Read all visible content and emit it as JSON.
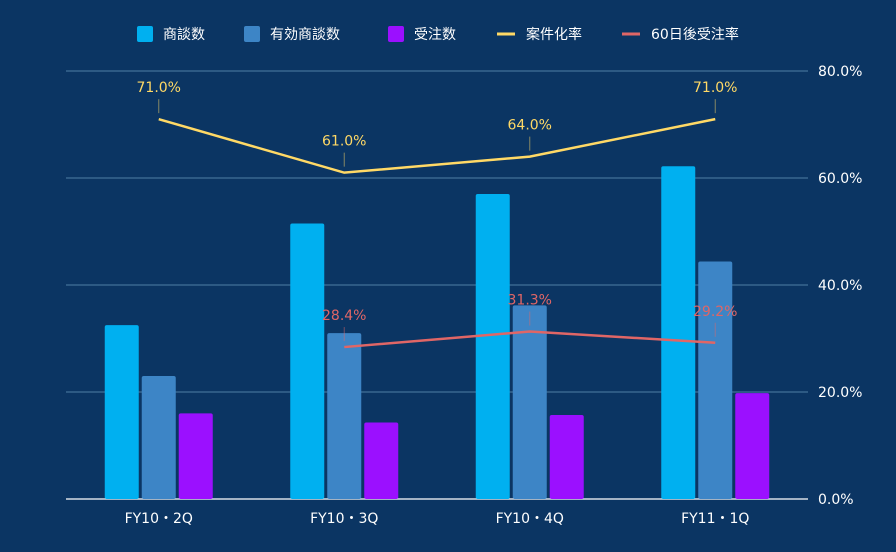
{
  "chart_data": {
    "type": "bar",
    "title": "",
    "categories": [
      "FY10・2Q",
      "FY10・3Q",
      "FY10・4Q",
      "FY11・1Q"
    ],
    "series": [
      {
        "name": "商談数",
        "type": "bar",
        "axis": "left",
        "color": "#00b0f0",
        "values": [
          32.5,
          51.5,
          57,
          62.2
        ]
      },
      {
        "name": "有効商談数",
        "type": "bar",
        "axis": "left",
        "color": "#3d85c6",
        "values": [
          23,
          31,
          36.2,
          44.4
        ]
      },
      {
        "name": "受注数",
        "type": "bar",
        "axis": "left",
        "color": "#9b10ff",
        "values": [
          16,
          14.3,
          15.7,
          19.8
        ]
      },
      {
        "name": "案件化率",
        "type": "line",
        "axis": "right",
        "color": "#ffd966",
        "values": [
          71.0,
          61.0,
          64.0,
          71.0
        ],
        "labels": [
          "71.0%",
          "61.0%",
          "64.0%",
          "71.0%"
        ]
      },
      {
        "name": "60日後受注率",
        "type": "line",
        "axis": "right",
        "color": "#e06666",
        "values": [
          null,
          28.4,
          31.3,
          29.2
        ],
        "labels": [
          "",
          "28.4%",
          "31.3%",
          "29.2%"
        ]
      }
    ],
    "y_left": {
      "range": [
        0,
        80
      ],
      "show_ticks": false
    },
    "y_right": {
      "range": [
        0,
        80
      ],
      "ticks": [
        "0.0%",
        "20.0%",
        "40.0%",
        "60.0%",
        "80.0%"
      ]
    },
    "grid": true,
    "legend_position": "top"
  }
}
